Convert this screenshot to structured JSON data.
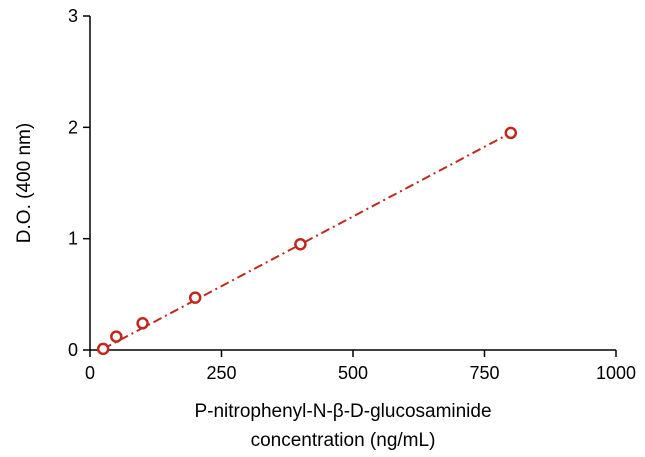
{
  "chart_data": {
    "type": "scatter",
    "title": "",
    "xlabel": [
      "P-nitrophenyl-N-β-D-glucosaminide",
      "concentration (ng/mL)"
    ],
    "ylabel": "D.O. (400 nm)",
    "xlim": [
      0,
      1000
    ],
    "ylim": [
      0,
      3
    ],
    "xticks": [
      0,
      250,
      500,
      750,
      1000
    ],
    "yticks": [
      0,
      1,
      2,
      3
    ],
    "grid": false,
    "legend": "none",
    "series": [
      {
        "x": [
          25,
          50,
          100,
          200,
          400,
          800
        ],
        "y": [
          0.01,
          0.12,
          0.24,
          0.47,
          0.95,
          1.95
        ],
        "marker": "open-circle",
        "color": "#c0281e"
      }
    ],
    "fit_line": {
      "x": [
        25,
        800
      ],
      "y": [
        0.01,
        1.95
      ],
      "style": "dash-dot",
      "color": "#c0281e"
    }
  }
}
